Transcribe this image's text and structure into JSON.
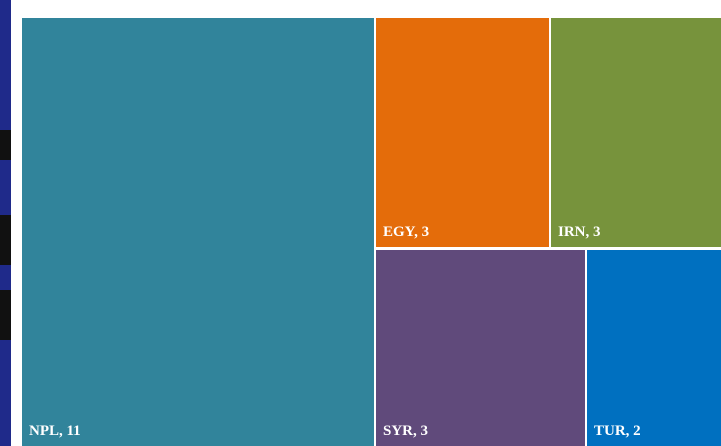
{
  "chart_data": {
    "type": "treemap",
    "title": "",
    "items": [
      {
        "label": "NPL, 11",
        "code": "NPL",
        "value": 11,
        "color": "#31849b"
      },
      {
        "label": "EGY, 3",
        "code": "EGY",
        "value": 3,
        "color": "#e46c0a"
      },
      {
        "label": "IRN, 3",
        "code": "IRN",
        "value": 3,
        "color": "#77933c"
      },
      {
        "label": "SYR, 3",
        "code": "SYR",
        "value": 3,
        "color": "#604a7b"
      },
      {
        "label": "TUR, 2",
        "code": "TUR",
        "value": 2,
        "color": "#0070c0"
      }
    ]
  }
}
